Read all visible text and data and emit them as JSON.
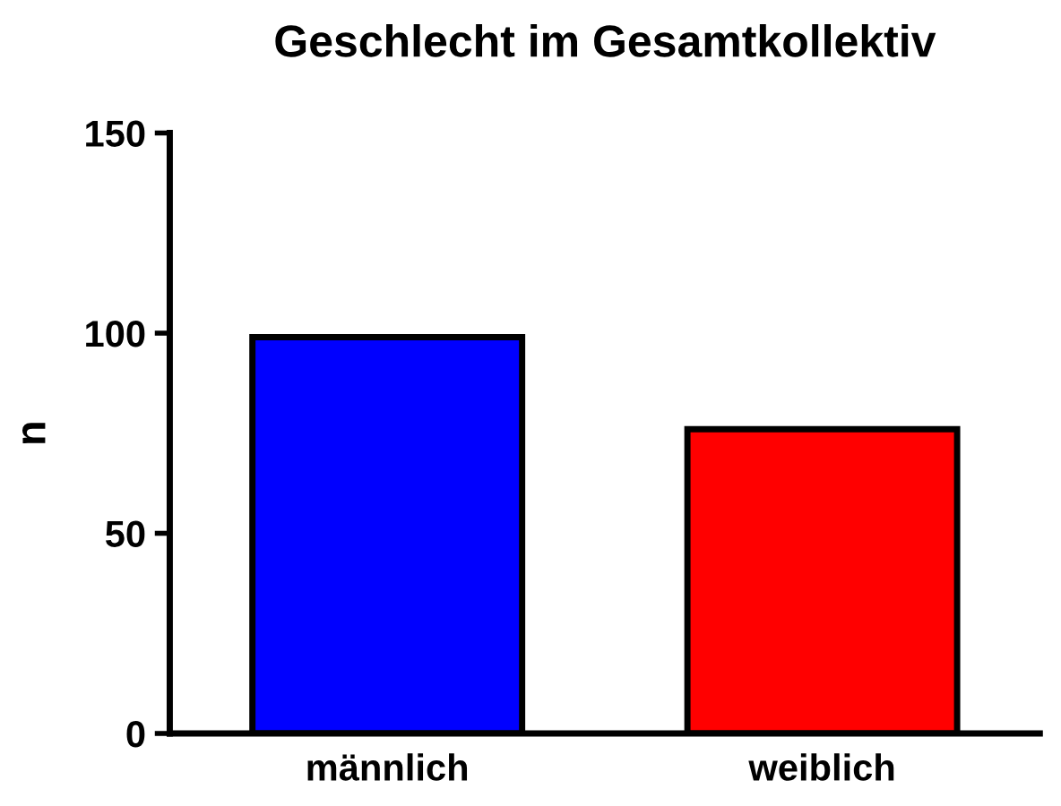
{
  "chart_data": {
    "type": "bar",
    "title": "Geschlecht im Gesamtkollektiv",
    "ylabel": "n",
    "categories": [
      "männlich",
      "weiblich"
    ],
    "values": [
      99,
      76
    ],
    "colors": [
      "#0000ff",
      "#ff0000"
    ],
    "ylim": [
      0,
      150
    ],
    "yticks": [
      0,
      50,
      100,
      150
    ],
    "grid": false
  }
}
